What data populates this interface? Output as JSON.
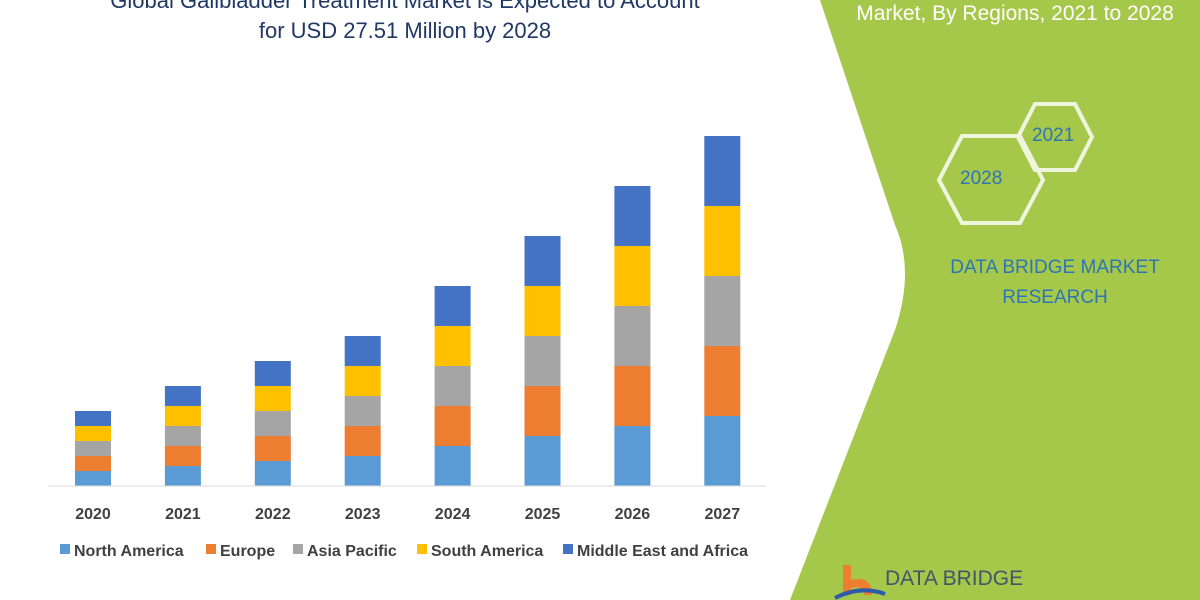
{
  "title_line1": "Global Gallbladder Treatment Market is Expected to Account",
  "title_line2": "for USD 27.51 Million by 2028",
  "side_panel": {
    "title": "Market, By Regions, 2021 to 2028",
    "hex_a": "2021",
    "hex_b": "2028",
    "brand_line1": "DATA BRIDGE MARKET",
    "brand_line2": "RESEARCH",
    "logo_text": "DATA BRIDGE",
    "color": "#a5c84b"
  },
  "chart_data": {
    "type": "bar",
    "stacked": true,
    "categories": [
      "2020",
      "2021",
      "2022",
      "2023",
      "2024",
      "2025",
      "2026",
      "2027"
    ],
    "series": [
      {
        "name": "North America",
        "color": "#5b9bd5",
        "values": [
          3,
          4,
          5,
          6,
          8,
          10,
          12,
          14
        ]
      },
      {
        "name": "Europe",
        "color": "#ed7d31",
        "values": [
          3,
          4,
          5,
          6,
          8,
          10,
          12,
          14
        ]
      },
      {
        "name": "Asia Pacific",
        "color": "#a5a5a5",
        "values": [
          3,
          4,
          5,
          6,
          8,
          10,
          12,
          14
        ]
      },
      {
        "name": "South America",
        "color": "#ffc000",
        "values": [
          3,
          4,
          5,
          6,
          8,
          10,
          12,
          14
        ]
      },
      {
        "name": "Middle East and Africa",
        "color": "#4472c4",
        "values": [
          3,
          4,
          5,
          6,
          8,
          10,
          12,
          14
        ]
      }
    ],
    "y_axis_shown": false,
    "grid": false,
    "legend_position": "bottom"
  }
}
